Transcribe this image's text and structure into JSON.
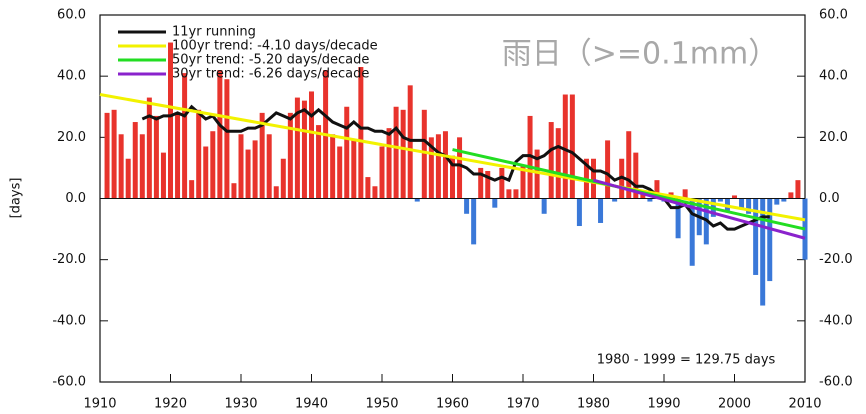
{
  "chart_data": {
    "type": "bar",
    "overlay_title": "雨日（>=0.1mm）",
    "ylabel": "[days]",
    "annotation": "1980 - 1999 = 129.75 days",
    "xlim": [
      1910,
      2010
    ],
    "xticks": [
      1910,
      1920,
      1930,
      1940,
      1950,
      1960,
      1970,
      1980,
      1990,
      2000,
      2010
    ],
    "ylim": [
      -60,
      60
    ],
    "yticks": [
      {
        "value": -60,
        "label": "-60.0"
      },
      {
        "value": -40,
        "label": "-40.0"
      },
      {
        "value": -20,
        "label": "-20.0"
      },
      {
        "value": 0,
        "label": "0.0"
      },
      {
        "value": 20,
        "label": "20.0"
      },
      {
        "value": 40,
        "label": "40.0"
      },
      {
        "value": 60,
        "label": "60.0"
      }
    ],
    "y2lim": [
      -60,
      60
    ],
    "y2ticks": [
      {
        "value": -60,
        "label": "-60.0"
      },
      {
        "value": -40,
        "label": "-40.0"
      },
      {
        "value": -20,
        "label": "-20.0"
      },
      {
        "value": 0,
        "label": "0.0"
      },
      {
        "value": 20,
        "label": "20.0"
      },
      {
        "value": 40,
        "label": "40.0"
      },
      {
        "value": 60,
        "label": "60.0"
      }
    ],
    "positive_color": "#e8332c",
    "negative_color": "#3a78d8",
    "bars": {
      "x": [
        1911,
        1912,
        1913,
        1914,
        1915,
        1916,
        1917,
        1918,
        1919,
        1920,
        1921,
        1922,
        1923,
        1924,
        1925,
        1926,
        1927,
        1928,
        1929,
        1930,
        1931,
        1932,
        1933,
        1934,
        1935,
        1936,
        1937,
        1938,
        1939,
        1940,
        1941,
        1942,
        1943,
        1944,
        1945,
        1946,
        1947,
        1948,
        1949,
        1950,
        1951,
        1952,
        1953,
        1954,
        1955,
        1956,
        1957,
        1958,
        1959,
        1960,
        1961,
        1962,
        1963,
        1964,
        1965,
        1966,
        1967,
        1968,
        1969,
        1970,
        1971,
        1972,
        1973,
        1974,
        1975,
        1976,
        1977,
        1978,
        1979,
        1980,
        1981,
        1982,
        1983,
        1984,
        1985,
        1986,
        1987,
        1988,
        1989,
        1990,
        1991,
        1992,
        1993,
        1994,
        1995,
        1996,
        1997,
        1998,
        1999,
        2000,
        2001,
        2002,
        2003,
        2004,
        2005,
        2006,
        2007,
        2008,
        2009,
        2010
      ],
      "values": [
        28,
        29,
        21,
        13,
        25,
        21,
        33,
        27,
        15,
        51,
        28,
        41,
        6,
        29,
        17,
        22,
        42,
        39,
        5,
        21,
        16,
        19,
        28,
        21,
        4,
        13,
        28,
        33,
        32,
        35,
        24,
        42,
        21,
        17,
        30,
        19,
        43,
        7,
        4,
        17,
        23,
        30,
        29,
        37,
        -1,
        29,
        20,
        21,
        22,
        14,
        20,
        -5,
        -15,
        10,
        9,
        -3,
        10,
        3,
        3,
        11,
        27,
        16,
        -5,
        25,
        23,
        34,
        34,
        -9,
        13,
        13,
        -8,
        19,
        -1,
        13,
        22,
        15,
        2,
        -1,
        6,
        -1,
        2,
        -13,
        3,
        -22,
        -12,
        -15,
        -6,
        -1,
        -4,
        1,
        -3,
        -5,
        -25,
        -35,
        -27,
        -2,
        -1,
        2,
        6,
        -20
      ]
    },
    "series": [
      {
        "name": "11yr running",
        "color": "#111111",
        "x": [
          1916,
          1917,
          1918,
          1919,
          1920,
          1921,
          1922,
          1923,
          1924,
          1925,
          1926,
          1927,
          1928,
          1929,
          1930,
          1931,
          1932,
          1933,
          1934,
          1935,
          1936,
          1937,
          1938,
          1939,
          1940,
          1941,
          1942,
          1943,
          1944,
          1945,
          1946,
          1947,
          1948,
          1949,
          1950,
          1951,
          1952,
          1953,
          1954,
          1955,
          1956,
          1957,
          1958,
          1959,
          1960,
          1961,
          1962,
          1963,
          1964,
          1965,
          1966,
          1967,
          1968,
          1969,
          1970,
          1971,
          1972,
          1973,
          1974,
          1975,
          1976,
          1977,
          1978,
          1979,
          1980,
          1981,
          1982,
          1983,
          1984,
          1985,
          1986,
          1987,
          1988,
          1989,
          1990,
          1991,
          1992,
          1993,
          1994,
          1995,
          1996,
          1997,
          1998,
          1999,
          2000,
          2001,
          2002,
          2003,
          2004,
          2005
        ],
        "values": [
          26,
          27,
          26,
          27,
          27,
          28,
          27,
          30,
          28,
          26,
          27,
          24,
          22,
          22,
          22,
          23,
          23,
          24,
          26,
          28,
          27,
          26,
          28,
          29,
          27,
          29,
          27,
          25,
          24,
          23,
          25,
          23,
          23,
          22,
          22,
          21,
          23,
          20,
          19,
          19,
          19,
          17,
          15,
          14,
          11,
          11,
          10,
          8,
          8,
          7,
          6,
          7,
          6,
          12,
          14,
          14,
          13,
          14,
          16,
          17,
          16,
          15,
          13,
          11,
          9,
          9,
          8,
          6,
          7,
          6,
          4,
          4,
          3,
          1,
          0,
          -3,
          -3,
          -2,
          -5,
          -6,
          -7,
          -9,
          -8,
          -10,
          -10,
          -9,
          -8,
          -7,
          -6,
          -6
        ]
      },
      {
        "name": "100yr trend: -4.10 days/decade",
        "color": "#f2f200",
        "x": [
          1910,
          2010
        ],
        "values": [
          34,
          -7
        ]
      },
      {
        "name": "50yr trend: -5.20 days/decade",
        "color": "#22dd22",
        "x": [
          1960,
          2010
        ],
        "values": [
          16,
          -10
        ]
      },
      {
        "name": "30yr trend: -6.26 days/decade",
        "color": "#8a22cc",
        "x": [
          1980,
          2010
        ],
        "values": [
          6,
          -13
        ]
      }
    ]
  }
}
